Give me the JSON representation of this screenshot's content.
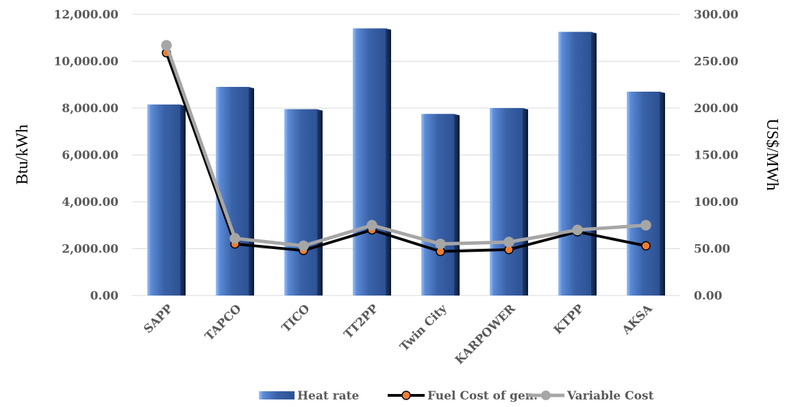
{
  "chart_data": {
    "type": "bar",
    "categories": [
      "SAPP",
      "TAPCO",
      "TICO",
      "TT2PP",
      "Twin City",
      "KARPOWER",
      "KTPP",
      "AKSA"
    ],
    "series": [
      {
        "name": "Heat rate",
        "type": "bar",
        "axis": "left",
        "values": [
          8150,
          8900,
          7950,
          11400,
          7750,
          8000,
          11250,
          8700
        ]
      },
      {
        "name": "Fuel Cost of gen.",
        "type": "line",
        "axis": "right",
        "values": [
          259,
          55,
          48,
          70,
          47,
          49,
          68,
          53
        ]
      },
      {
        "name": "Variable Cost",
        "type": "line",
        "axis": "right",
        "values": [
          267,
          61,
          53,
          75,
          55,
          57,
          70,
          75
        ]
      }
    ],
    "ylabel": "Btu/kWh",
    "y2label": "US$/MWh",
    "ylim": [
      0,
      12000
    ],
    "y2lim": [
      0,
      300
    ],
    "yticks": [
      "0.00",
      "2,000.00",
      "4,000.00",
      "6,000.00",
      "8,000.00",
      "10,000.00",
      "12,000.00"
    ],
    "y2ticks": [
      "0.00",
      "50.00",
      "100.00",
      "150.00",
      "200.00",
      "250.00",
      "300.00"
    ],
    "grid": true,
    "legend_position": "bottom-right",
    "colors": {
      "bar": "#3a62a8",
      "bar_light": "#8fb7ee",
      "bar_dark": "#0f1e3a",
      "fuel_line": "#000000",
      "fuel_marker": "#ed7d31",
      "variable_line": "#a6a6a6"
    }
  }
}
